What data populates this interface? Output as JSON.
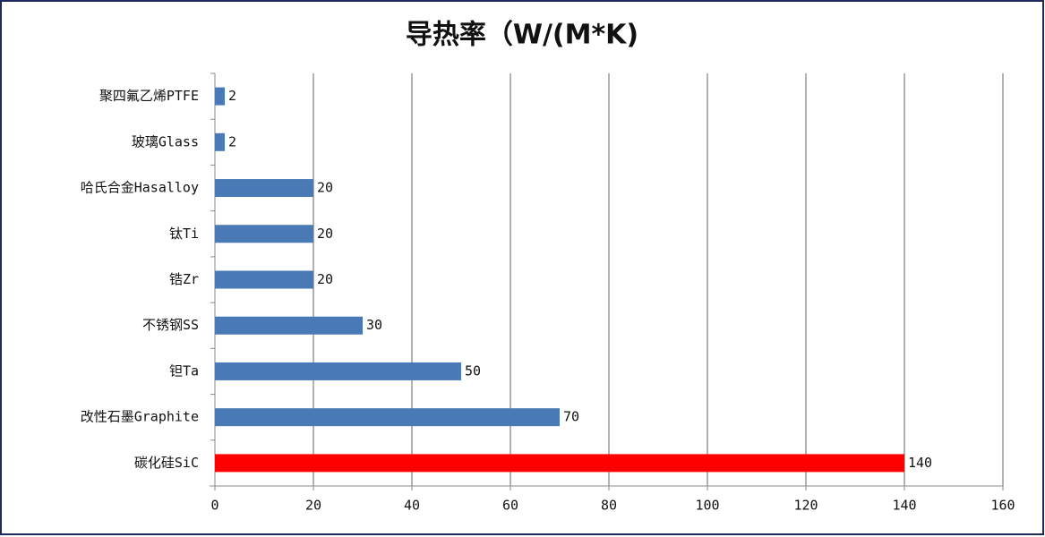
{
  "chart_data": {
    "type": "bar",
    "orientation": "horizontal",
    "title": "导热率（W/(M*K)",
    "categories": [
      "聚四氟乙烯PTFE",
      "玻璃Glass",
      "哈氏合金Hasalloy",
      "钛Ti",
      "锆Zr",
      "不锈钢SS",
      "钽Ta",
      "改性石墨Graphite",
      "碳化硅SiC"
    ],
    "values": [
      2,
      2,
      20,
      20,
      20,
      30,
      50,
      70,
      140
    ],
    "colors": [
      "#4a7ab5",
      "#4a7ab5",
      "#4a7ab5",
      "#4a7ab5",
      "#4a7ab5",
      "#4a7ab5",
      "#4a7ab5",
      "#4a7ab5",
      "#ff0000"
    ],
    "xlim": [
      0,
      160
    ],
    "xticks": [
      0,
      20,
      40,
      60,
      80,
      100,
      120,
      140,
      160
    ],
    "grid": true
  }
}
